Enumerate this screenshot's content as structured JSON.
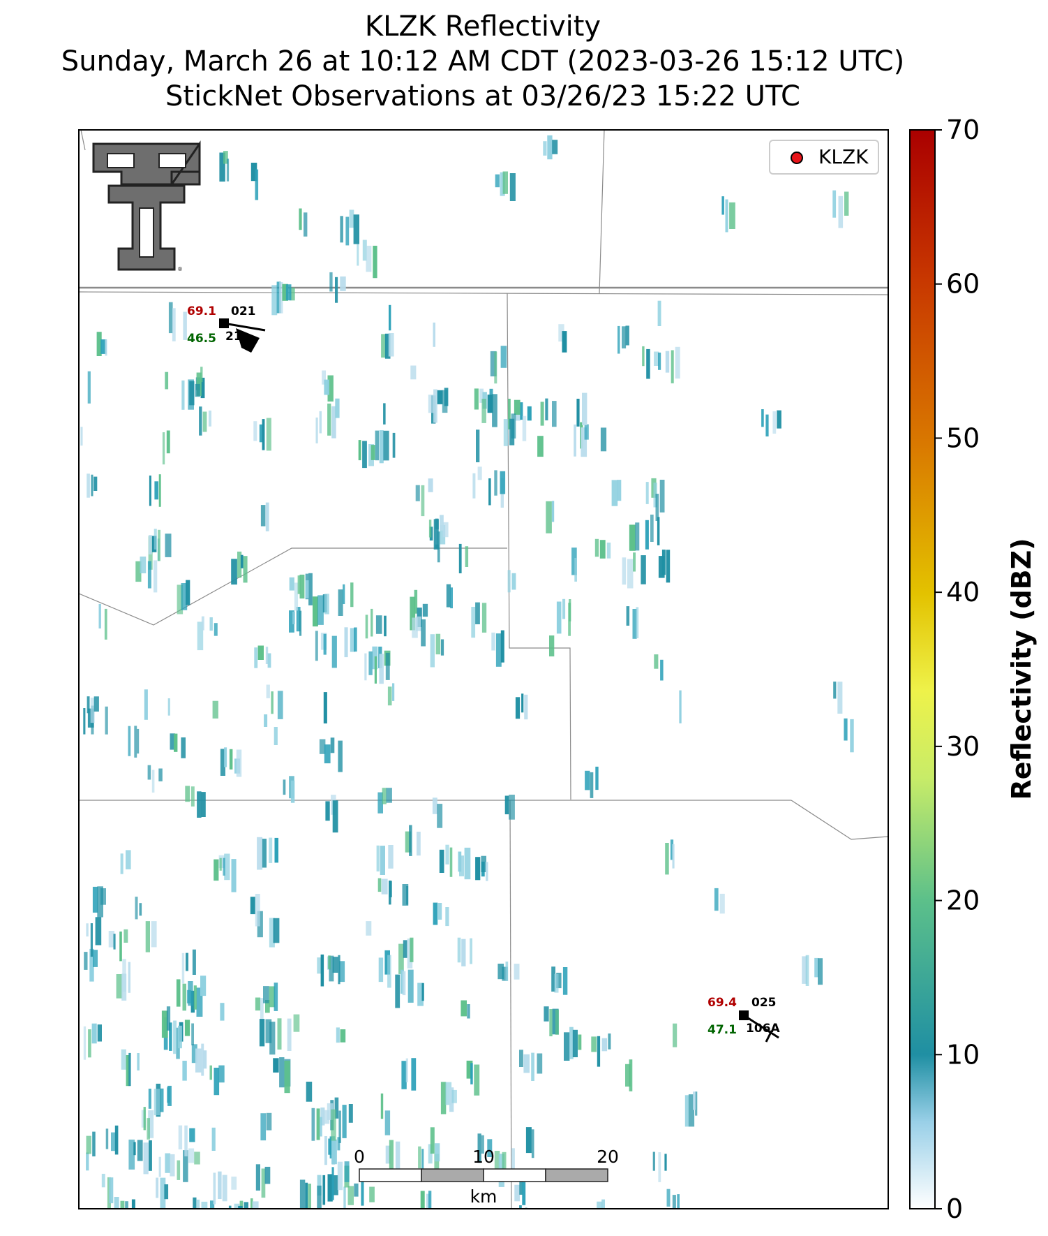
{
  "title": {
    "line1": "KLZK Reflectivity",
    "line2": "Sunday, March 26 at 10:12 AM CDT (2023-03-26 15:12 UTC)",
    "line3": "StickNet Observations at 03/26/23 15:22 UTC"
  },
  "legend": {
    "label": "KLZK",
    "marker_color": "#e8141a"
  },
  "colorbar": {
    "label": "Reflectivity (dBZ)",
    "min": 0,
    "max": 70,
    "ticks": [
      "0",
      "10",
      "20",
      "30",
      "40",
      "50",
      "60",
      "70"
    ]
  },
  "stations": [
    {
      "id": "021",
      "temp": "69.1",
      "dewpoint": "46.5",
      "extra": "21..."
    },
    {
      "id": "025",
      "temp": "69.4",
      "dewpoint": "47.1",
      "extra": "106A"
    }
  ],
  "scale_bar": {
    "labels": [
      "0",
      "10",
      "20"
    ],
    "unit": "km"
  },
  "colors": {
    "temp": "#b00000",
    "dewpoint": "#006400",
    "echo_dark": "#1f8fa3",
    "echo_light": "#8fd0e0",
    "echo_green": "#5cc08a"
  }
}
